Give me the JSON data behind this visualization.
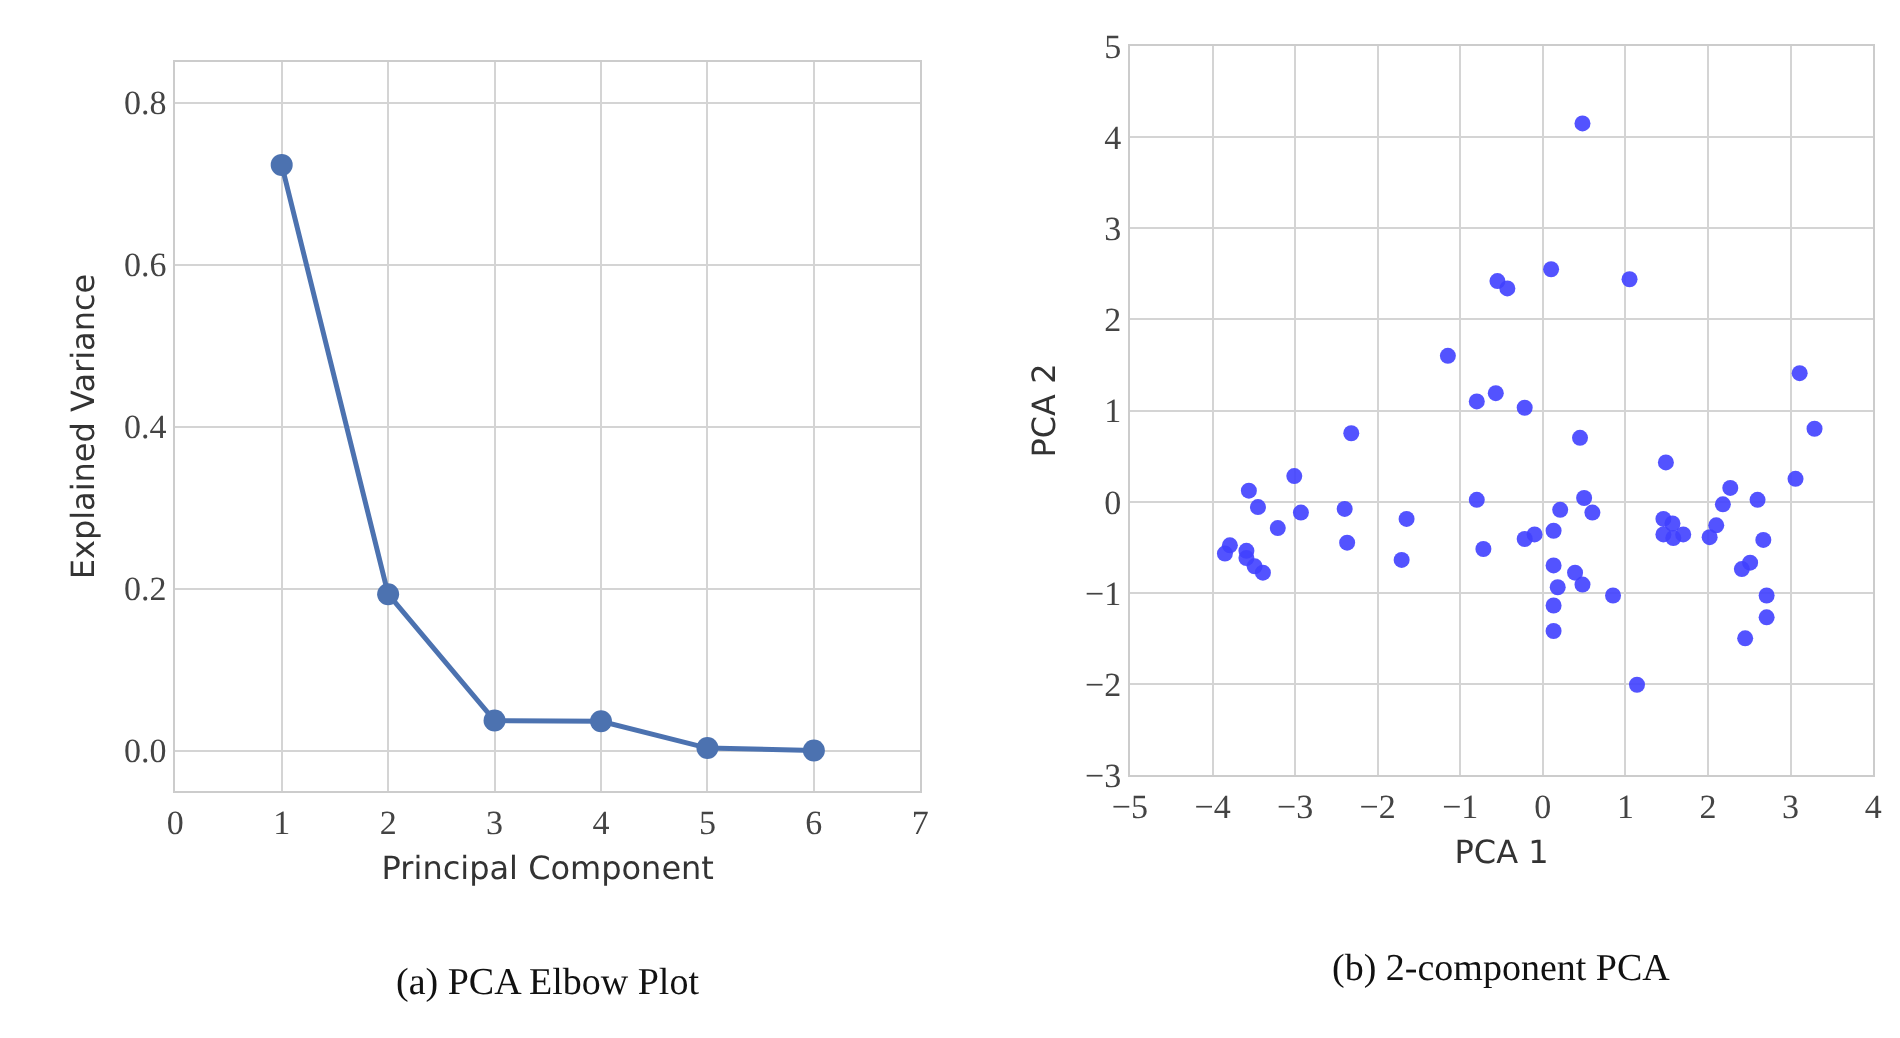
{
  "chart_data": [
    {
      "type": "line",
      "title": "(a) PCA Elbow Plot",
      "xlabel": "Principal Component",
      "ylabel": "Explained Variance",
      "x": [
        1,
        2,
        3,
        4,
        5,
        6
      ],
      "series": [
        {
          "color": "#4c72b0",
          "values": [
            0.723,
            0.193,
            0.037,
            0.036,
            0.003,
            0.0
          ]
        }
      ],
      "xlim": [
        0,
        7
      ],
      "xticks": [
        0,
        1,
        2,
        3,
        4,
        5,
        6,
        7
      ],
      "ylim": [
        -0.05,
        0.85
      ],
      "yticks": [
        {
          "value": 0,
          "label": "0.0"
        },
        0.2,
        0.4,
        0.6,
        0.8
      ],
      "grid": true,
      "marker": "circle",
      "line_style": "solid"
    },
    {
      "type": "scatter",
      "title": "(b) 2-component PCA",
      "xlabel": "PCA 1",
      "ylabel": "PCA 2",
      "x": [
        -0.55,
        -0.43,
        -1.15,
        -0.8,
        -0.57,
        -2.32,
        0.48,
        0.1,
        1.05,
        3.11,
        -0.22,
        0.45,
        3.29,
        -3.01,
        -3.56,
        -3.45,
        -2.93,
        -2.4,
        -3.21,
        -1.65,
        -0.8,
        -3.79,
        -3.85,
        -3.59,
        -3.59,
        -3.49,
        -3.39,
        -2.37,
        -1.71,
        -0.72,
        1.49,
        3.06,
        2.27,
        2.18,
        2.6,
        0.21,
        0.5,
        0.6,
        0.13,
        -0.1,
        -0.22,
        1.46,
        1.57,
        1.46,
        1.58,
        1.7,
        2.1,
        2.02,
        2.67,
        0.13,
        0.39,
        0.18,
        0.48,
        0.85,
        2.51,
        2.41,
        2.71,
        2.71,
        2.45,
        0.13,
        0.13,
        1.14
      ],
      "series": [
        {
          "color": "#4040ff",
          "values": [
            2.42,
            2.34,
            1.6,
            1.1,
            1.19,
            0.75,
            4.15,
            2.55,
            2.44,
            1.41,
            1.03,
            0.7,
            0.8,
            0.28,
            0.12,
            -0.06,
            -0.12,
            -0.08,
            -0.29,
            -0.19,
            0.02,
            -0.48,
            -0.57,
            -0.54,
            -0.62,
            -0.71,
            -0.78,
            -0.45,
            -0.64,
            -0.52,
            0.43,
            0.25,
            0.15,
            -0.03,
            0.02,
            -0.09,
            0.04,
            -0.12,
            -0.32,
            -0.36,
            -0.41,
            -0.19,
            -0.24,
            -0.36,
            -0.4,
            -0.36,
            -0.26,
            -0.39,
            -0.42,
            -0.7,
            -0.78,
            -0.94,
            -0.91,
            -1.03,
            -0.67,
            -0.74,
            -1.03,
            -1.27,
            -1.5,
            -1.14,
            -1.42,
            -2.01
          ]
        }
      ],
      "xlim": [
        -5,
        4
      ],
      "xticks": [
        {
          "value": -5,
          "label": "−5"
        },
        {
          "value": -4,
          "label": "−4"
        },
        {
          "value": -3,
          "label": "−3"
        },
        {
          "value": -2,
          "label": "−2"
        },
        {
          "value": -1,
          "label": "−1"
        },
        0,
        1,
        2,
        3,
        4
      ],
      "ylim": [
        -3,
        5
      ],
      "yticks": [
        {
          "value": -3,
          "label": "−3"
        },
        {
          "value": -2,
          "label": "−2"
        },
        {
          "value": -1,
          "label": "−1"
        },
        0,
        1,
        2,
        3,
        4,
        5
      ],
      "grid": true,
      "marker": "circle"
    }
  ]
}
